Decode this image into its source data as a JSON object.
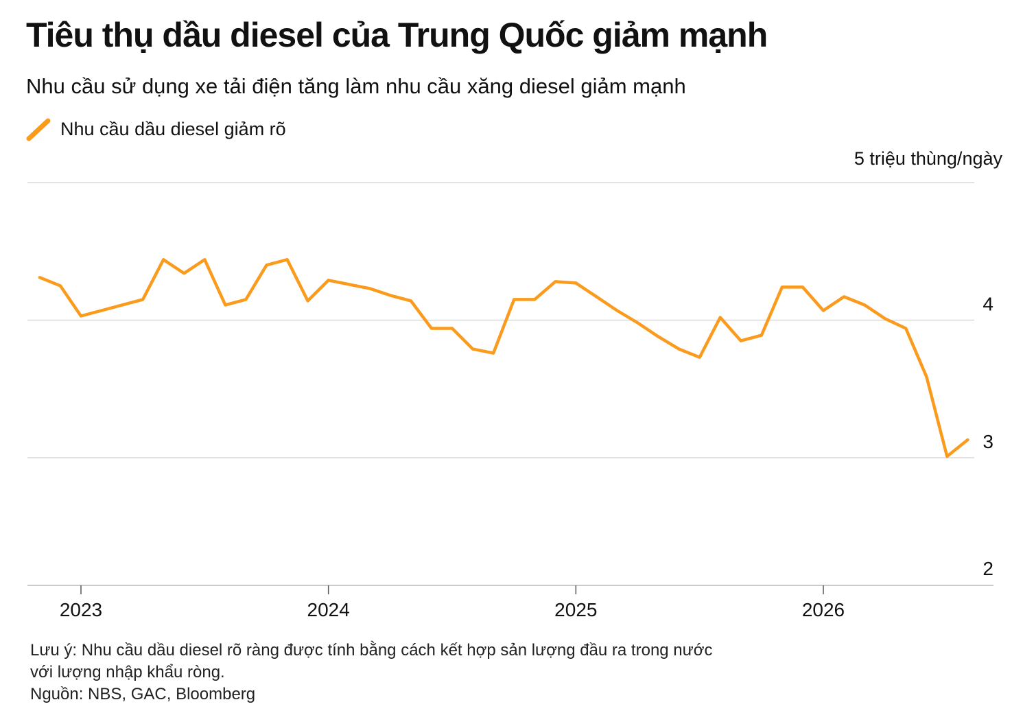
{
  "title": "Tiêu thụ dầu diesel của Trung Quốc giảm mạnh",
  "subtitle": "Nhu cầu sử dụng xe tải điện tăng làm nhu cầu xăng diesel giảm mạnh",
  "unit_label": "5 triệu thùng/ngày",
  "notes": {
    "note_line1": "Lưu ý: Nhu cầu dầu diesel rõ ràng được tính bằng cách kết hợp sản lượng đầu ra trong nước",
    "note_line2": "với lượng nhập khẩu ròng.",
    "source": "Nguồn: NBS, GAC, Bloomberg"
  },
  "colors": {
    "line": "#FA9B1E",
    "grid": "#d9d9d9",
    "axis": "#bbbbbb"
  },
  "chart_data": {
    "type": "line",
    "series": [
      {
        "name": "Nhu cầu dầu diesel giảm rõ",
        "x": [
          "2022-11",
          "2022-12",
          "2023-01",
          "2023-02",
          "2023-03",
          "2023-04",
          "2023-05",
          "2023-06",
          "2023-07",
          "2023-08",
          "2023-09",
          "2023-10",
          "2023-11",
          "2023-12",
          "2024-01",
          "2024-02",
          "2024-03",
          "2024-04",
          "2024-05",
          "2024-06",
          "2024-07",
          "2024-08",
          "2024-09",
          "2024-10",
          "2024-11",
          "2024-12",
          "2025-01",
          "2025-02",
          "2025-03",
          "2025-04",
          "2025-05",
          "2025-06",
          "2025-07",
          "2025-08",
          "2025-09",
          "2025-10",
          "2025-11",
          "2025-12",
          "2026-01",
          "2026-02",
          "2026-03",
          "2026-04",
          "2026-05",
          "2026-06",
          "2026-07",
          "2026-08"
        ],
        "values": [
          4.31,
          4.25,
          4.03,
          4.07,
          4.11,
          4.15,
          4.44,
          4.34,
          4.44,
          4.11,
          4.15,
          4.4,
          4.44,
          4.14,
          4.29,
          4.26,
          4.23,
          4.18,
          4.14,
          3.94,
          3.94,
          3.79,
          3.76,
          4.15,
          4.15,
          4.28,
          4.27,
          4.17,
          4.07,
          3.98,
          3.88,
          3.79,
          3.73,
          4.02,
          3.85,
          3.89,
          4.24,
          4.24,
          4.07,
          4.17,
          4.11,
          4.01,
          3.94,
          3.59,
          3.01,
          3.13
        ]
      }
    ],
    "y_ticks": [
      2,
      3,
      4,
      5
    ],
    "x_tick_labels": [
      "2023",
      "2024",
      "2025",
      "2026"
    ],
    "ylim": [
      2,
      5
    ],
    "grid": true,
    "legend": "top-left"
  }
}
